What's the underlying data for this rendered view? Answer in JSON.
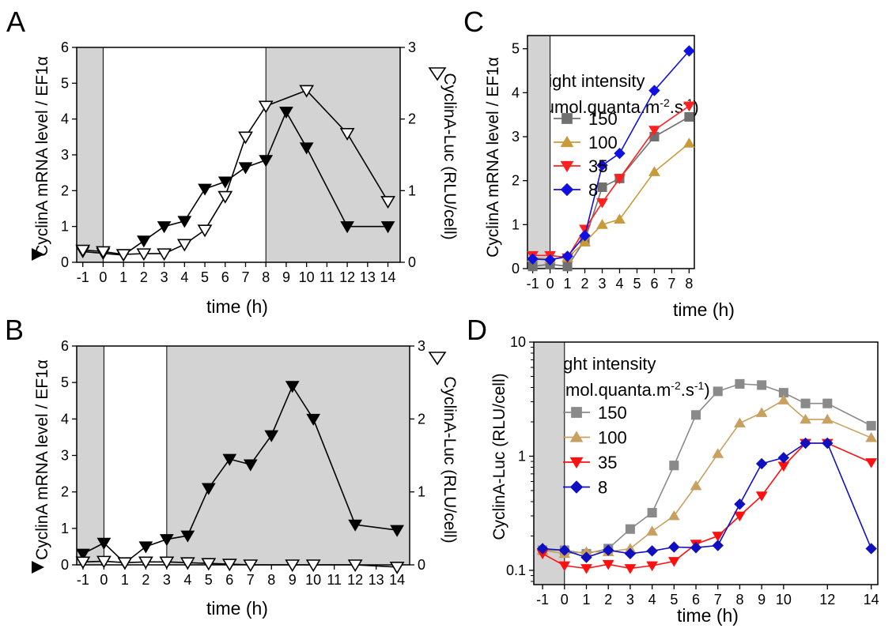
{
  "chart_data": [
    {
      "panel": "A",
      "type": "line",
      "xlabel": "time (h)",
      "ylabel_left": "CyclinA mRNA level / EF1α",
      "ylabel_right": "CyclinA-Luc (RLU/cell)",
      "xlim": [
        -1.3,
        14.6
      ],
      "ylim_left": [
        0,
        6
      ],
      "ylim_right": [
        0,
        3
      ],
      "xticks": [
        -1,
        0,
        1,
        2,
        3,
        4,
        5,
        6,
        7,
        8,
        9,
        10,
        11,
        12,
        13,
        14
      ],
      "yticks_left": [
        0,
        1,
        2,
        3,
        4,
        5,
        6
      ],
      "yticks_right": [
        0,
        1,
        2,
        3
      ],
      "dark_periods": [
        [
          -1.3,
          0
        ],
        [
          8,
          14.6
        ]
      ],
      "series": [
        {
          "marker": "filled-down-triangle",
          "axis": "left",
          "x": [
            -1,
            0,
            1,
            2,
            3,
            4,
            5,
            6,
            7,
            8,
            9,
            10,
            12,
            14
          ],
          "y": [
            0.3,
            0.25,
            0.2,
            0.6,
            1.0,
            1.15,
            2.05,
            2.25,
            2.65,
            2.85,
            4.2,
            3.2,
            1.0,
            1.0
          ]
        },
        {
          "marker": "open-down-triangle",
          "axis": "right",
          "x": [
            -1,
            0,
            1,
            2,
            3,
            4,
            5,
            6,
            7,
            8,
            10,
            12,
            14
          ],
          "y": [
            0.17,
            0.15,
            0.11,
            0.12,
            0.12,
            0.25,
            0.45,
            0.92,
            1.75,
            2.18,
            2.4,
            1.8,
            0.85
          ]
        }
      ]
    },
    {
      "panel": "B",
      "type": "line",
      "xlabel": "time (h)",
      "ylabel_left": "CyclinA mRNA level / EF1α",
      "ylabel_right": "CyclinA-Luc (RLU/cell)",
      "xlim": [
        -1.3,
        14.6
      ],
      "ylim_left": [
        0,
        6
      ],
      "ylim_right": [
        0,
        3
      ],
      "xticks": [
        -1,
        0,
        1,
        2,
        3,
        4,
        5,
        6,
        7,
        8,
        9,
        10,
        11,
        12,
        13,
        14
      ],
      "yticks_left": [
        0,
        1,
        2,
        3,
        4,
        5,
        6
      ],
      "yticks_right": [
        0,
        1,
        2,
        3
      ],
      "dark_periods": [
        [
          -1.3,
          0
        ],
        [
          3,
          14.6
        ]
      ],
      "series": [
        {
          "marker": "filled-down-triangle",
          "axis": "left",
          "x": [
            -1,
            0,
            1,
            2,
            3,
            4,
            5,
            6,
            7,
            8,
            9,
            10,
            12,
            14
          ],
          "y": [
            0.3,
            0.6,
            0.05,
            0.5,
            0.7,
            0.8,
            2.1,
            2.9,
            2.75,
            3.55,
            4.9,
            4.0,
            1.1,
            0.95
          ]
        },
        {
          "marker": "open-down-triangle",
          "axis": "right",
          "x": [
            -1,
            0,
            1,
            2,
            3,
            4,
            5,
            6,
            7,
            9,
            10,
            12,
            14
          ],
          "y": [
            0.04,
            0.05,
            0.03,
            0.04,
            0.04,
            0.03,
            0.02,
            0.01,
            0.0,
            0.0,
            0.0,
            0.0,
            -0.03
          ]
        }
      ]
    },
    {
      "panel": "C",
      "type": "line",
      "xlabel": "time (h)",
      "ylabel": "CyclinA mRNA level / EF1α",
      "xlim": [
        -1.3,
        8.3
      ],
      "ylim": [
        0,
        5.3
      ],
      "xticks": [
        -1,
        0,
        1,
        2,
        3,
        4,
        5,
        6,
        7,
        8
      ],
      "yticks": [
        0,
        1,
        2,
        3,
        4,
        5
      ],
      "dark_periods": [
        [
          -1.3,
          0
        ]
      ],
      "legend_title": "Light intensity",
      "legend_subtitle_pre": "(μmol.quanta.m",
      "legend_subtitle_sup1": "-2",
      "legend_subtitle_mid": ".s",
      "legend_subtitle_sup2": "-1",
      "legend_subtitle_post": ")",
      "series": [
        {
          "name": "150",
          "color": "#707070",
          "marker": "square",
          "x": [
            -1,
            0,
            1,
            2,
            3,
            4,
            6,
            8
          ],
          "y": [
            0.05,
            0.1,
            0.05,
            0.65,
            1.85,
            2.05,
            3.0,
            3.45
          ]
        },
        {
          "name": "100",
          "color": "#c89a3a",
          "marker": "up-triangle",
          "x": [
            -1,
            0,
            1,
            2,
            3,
            4,
            6,
            8
          ],
          "y": [
            0.25,
            0.22,
            0.25,
            0.6,
            1.0,
            1.12,
            2.2,
            2.85
          ]
        },
        {
          "name": "35",
          "color": "#ff2020",
          "marker": "down-triangle",
          "x": [
            -1,
            0,
            1,
            2,
            3,
            4,
            6,
            8
          ],
          "y": [
            0.3,
            0.3,
            0.25,
            0.9,
            1.5,
            2.05,
            3.15,
            3.7
          ]
        },
        {
          "name": "8",
          "color": "#1010e0",
          "marker": "diamond",
          "x": [
            -1,
            0,
            1,
            2,
            3,
            4,
            6,
            8
          ],
          "y": [
            0.22,
            0.2,
            0.28,
            0.75,
            2.35,
            2.62,
            4.05,
            4.95
          ]
        }
      ]
    },
    {
      "panel": "D",
      "type": "line",
      "scale_y": "log",
      "xlabel": "time (h)",
      "ylabel": "CyclinA-Luc (RLU/cell)",
      "xlim": [
        -1.4,
        14.3
      ],
      "ylim": [
        0.075,
        10
      ],
      "xticks": [
        -1,
        0,
        1,
        2,
        3,
        4,
        5,
        6,
        7,
        8,
        9,
        10,
        12,
        14
      ],
      "xtick_labels": [
        "-1",
        "0",
        "1",
        "2",
        "3",
        "4",
        "5",
        "6",
        "7",
        "8",
        "9",
        "10",
        "12",
        "14"
      ],
      "yticks": [
        0.1,
        1,
        10
      ],
      "ytick_labels": [
        "0.1",
        "1",
        "10"
      ],
      "dark_periods": [
        [
          -1.4,
          0
        ]
      ],
      "legend_title": "Light intensity",
      "legend_subtitle_pre": "(μmol.quanta.m",
      "legend_subtitle_sup1": "-2",
      "legend_subtitle_mid": ".s",
      "legend_subtitle_sup2": "-1",
      "legend_subtitle_post": ")",
      "series": [
        {
          "name": "150",
          "color": "#8a8a8a",
          "marker": "square",
          "x": [
            -1,
            0,
            1,
            2,
            3,
            4,
            5,
            6,
            7,
            8,
            9,
            10,
            11,
            12,
            14
          ],
          "y": [
            0.15,
            0.15,
            0.14,
            0.155,
            0.23,
            0.32,
            0.83,
            2.3,
            3.7,
            4.3,
            4.2,
            3.6,
            2.9,
            2.9,
            1.85
          ]
        },
        {
          "name": "100",
          "color": "#c8a060",
          "marker": "up-triangle",
          "x": [
            -1,
            0,
            1,
            2,
            3,
            4,
            5,
            6,
            7,
            8,
            9,
            10,
            11,
            12,
            14
          ],
          "y": [
            0.15,
            0.14,
            0.145,
            0.145,
            0.155,
            0.22,
            0.3,
            0.55,
            1.05,
            1.95,
            2.4,
            3.1,
            2.1,
            2.1,
            1.45
          ]
        },
        {
          "name": "35",
          "color": "#ff1010",
          "marker": "down-triangle",
          "x": [
            -1,
            0,
            1,
            2,
            3,
            4,
            5,
            6,
            7,
            8,
            9,
            10,
            11,
            12,
            14
          ],
          "y": [
            0.14,
            0.11,
            0.104,
            0.113,
            0.104,
            0.11,
            0.12,
            0.17,
            0.2,
            0.3,
            0.45,
            0.82,
            1.3,
            1.3,
            0.88
          ]
        },
        {
          "name": "8",
          "color": "#1010c0",
          "marker": "diamond",
          "x": [
            -1,
            0,
            1,
            2,
            3,
            4,
            5,
            6,
            7,
            8,
            9,
            10,
            11,
            12,
            14
          ],
          "y": [
            0.155,
            0.15,
            0.13,
            0.15,
            0.14,
            0.148,
            0.16,
            0.158,
            0.165,
            0.38,
            0.86,
            0.97,
            1.3,
            1.3,
            0.155
          ]
        }
      ]
    }
  ]
}
